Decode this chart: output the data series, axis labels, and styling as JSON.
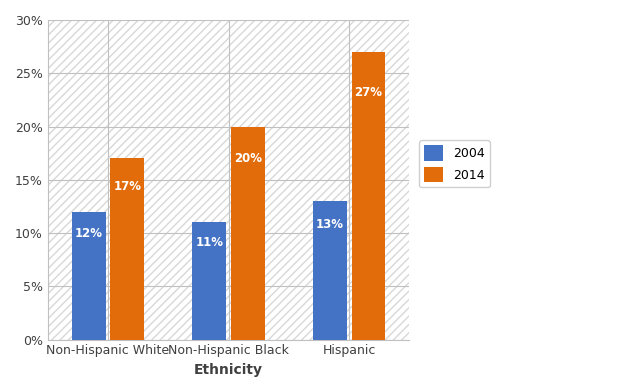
{
  "categories": [
    "Non-Hispanic White",
    "Non-Hispanic Black",
    "Hispanic"
  ],
  "values_2004": [
    12,
    11,
    13
  ],
  "values_2014": [
    17,
    20,
    27
  ],
  "labels_2004": [
    "12%",
    "11%",
    "13%"
  ],
  "labels_2014": [
    "17%",
    "20%",
    "27%"
  ],
  "color_2004": "#4472C4",
  "color_2014": "#E36C0A",
  "legend_labels": [
    "2004",
    "2014"
  ],
  "xlabel": "Ethnicity",
  "ylim": [
    0,
    30
  ],
  "yticks": [
    0,
    5,
    10,
    15,
    20,
    25,
    30
  ],
  "bar_width": 0.28,
  "background_color": "#ffffff",
  "plot_bg_color": "#ffffff",
  "grid_color": "#c0c0c0",
  "hatch_color": "#d8d8d8",
  "xlabel_fontsize": 10,
  "label_fontsize": 8.5,
  "tick_fontsize": 9,
  "legend_fontsize": 9
}
